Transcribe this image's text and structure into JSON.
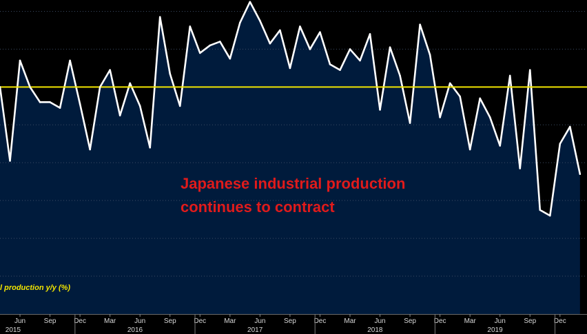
{
  "chart_data": {
    "type": "area",
    "title": "",
    "xlabel": "",
    "ylabel": "",
    "annotation": {
      "lines": [
        "Japanese industrial production",
        "continues to contract"
      ],
      "color": "#e01b1b"
    },
    "legend": {
      "text": "l production y/y (%)",
      "position": "bottom-left",
      "color": "#f2e500"
    },
    "reference_line": {
      "value": 0,
      "color": "#f2e500"
    },
    "colors": {
      "background": "#000000",
      "area_fill": "#001b3c",
      "line": "#ffffff",
      "grid": "#3c4c64"
    },
    "grid": "horizontal-dotted",
    "ylim": [
      -12,
      4.6
    ],
    "x_ticks": [
      "Jun",
      "Sep",
      "Dec",
      "Mar",
      "Jun",
      "Sep",
      "Dec",
      "Mar",
      "Jun",
      "Sep",
      "Dec",
      "Mar",
      "Jun",
      "Sep",
      "Dec",
      "Mar",
      "Jun",
      "Sep",
      "Dec"
    ],
    "x_tick_index": [
      2,
      5,
      8,
      11,
      14,
      17,
      20,
      23,
      26,
      29,
      32,
      35,
      38,
      41,
      44,
      47,
      50,
      53,
      56
    ],
    "years": [
      {
        "label": "2015",
        "index": 0.4
      },
      {
        "label": "2016",
        "index": 12.6
      },
      {
        "label": "2017",
        "index": 24.6
      },
      {
        "label": "2018",
        "index": 36.6
      },
      {
        "label": "2019",
        "index": 48.6
      }
    ],
    "year_dividers": [
      7.5,
      19.5,
      31.5,
      43.5,
      55.5
    ],
    "x_range": [
      0,
      58.7
    ],
    "series": [
      {
        "values": [
          0.0,
          -3.9,
          1.4,
          0.0,
          -0.8,
          -0.8,
          -1.1,
          1.4,
          -0.9,
          -3.3,
          0.0,
          0.9,
          -1.5,
          0.2,
          -1.0,
          -3.2,
          3.7,
          0.7,
          -1.0,
          3.2,
          1.8,
          2.2,
          2.4,
          1.5,
          3.4,
          4.5,
          3.5,
          2.3,
          3.0,
          1.0,
          3.2,
          2.0,
          2.9,
          1.2,
          0.9,
          2.0,
          1.4,
          2.8,
          -1.2,
          2.1,
          0.6,
          -1.9,
          3.3,
          1.7,
          -1.6,
          0.2,
          -0.5,
          -3.3,
          -0.6,
          -1.6,
          -3.1,
          0.6,
          -4.3,
          0.9,
          -6.5,
          -6.8,
          -3.0,
          -2.1,
          -4.6
        ]
      }
    ]
  }
}
